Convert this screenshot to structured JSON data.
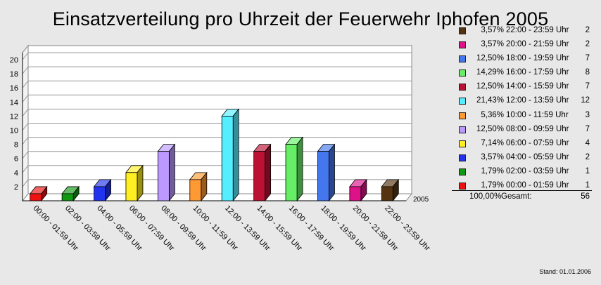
{
  "chart_data": {
    "type": "bar",
    "title": "Einsatzverteilung pro Uhrzeit der Feuerwehr Iphofen 2005",
    "categories": [
      "00:00 - 01:59 Uhr",
      "02:00 - 03:59 Uhr",
      "04:00 - 05:59 Uhr",
      "06:00 - 07:59 Uhr",
      "08:00 - 09:59 Uhr",
      "10:00 - 11:59 Uhr",
      "12:00 - 13:59 Uhr",
      "14:00 - 15:59 Uhr",
      "16:00 - 17:59 Uhr",
      "18:00 - 19:59 Uhr",
      "20:00 - 21:59 Uhr",
      "22:00 - 23:59 Uhr"
    ],
    "series": [
      {
        "name": "2005",
        "values": [
          1,
          1,
          2,
          4,
          7,
          3,
          12,
          7,
          8,
          7,
          2,
          2
        ]
      }
    ],
    "colors": [
      "#ee1111",
      "#119911",
      "#2233ee",
      "#ffee22",
      "#bb99ff",
      "#ff9933",
      "#55eeff",
      "#bb1133",
      "#66ee66",
      "#4477ee",
      "#dd1188",
      "#553311"
    ],
    "percents": [
      "1,79%",
      "1,79%",
      "3,57%",
      "7,14%",
      "12,50%",
      "5,36%",
      "21,43%",
      "12,50%",
      "14,29%",
      "12,50%",
      "3,57%",
      "3,57%"
    ],
    "ylim": [
      0,
      21
    ],
    "yticks": [
      2,
      4,
      6,
      8,
      10,
      12,
      14,
      16,
      18,
      20
    ],
    "grid": true,
    "legend_position": "right",
    "depth_label": "2005",
    "total": {
      "percent": "100,00%",
      "label": "Gesamt:",
      "count": "56"
    }
  },
  "footer": "Stand: 01.01.2006"
}
